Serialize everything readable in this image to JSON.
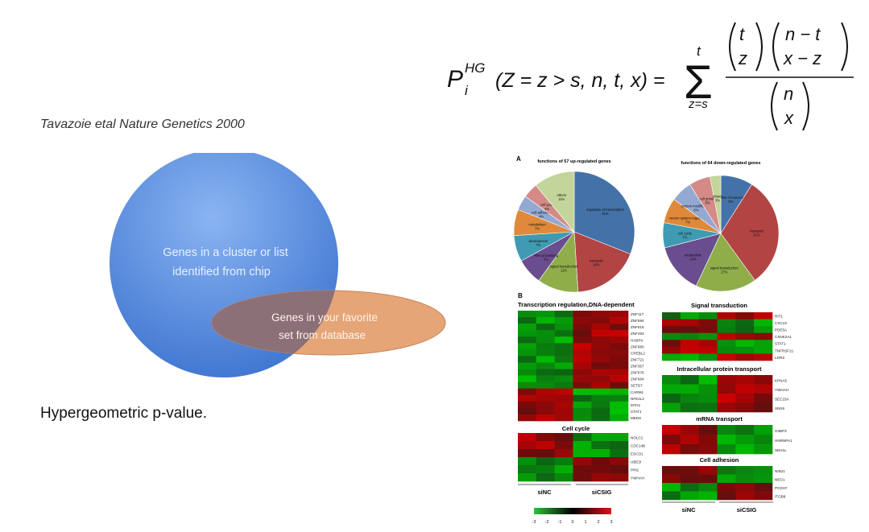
{
  "formula": {
    "lhs_P": "P",
    "lhs_sup": "HG",
    "lhs_sub": "i",
    "lhs_args": "(Z = z > s, n, t, x) =",
    "sum_top": "t",
    "sum_bottom": "z=s",
    "binom1_top": "t",
    "binom1_bottom": "z",
    "binom2_top": "n − t",
    "binom2_bottom": "x − z",
    "binom3_top": "n",
    "binom3_bottom": "x"
  },
  "citation": "Tavazoie etal Nature Genetics 2000",
  "venn": {
    "big_label_line1": "Genes in a cluster or list",
    "big_label_line2": "identified from chip",
    "small_label_line1": "Genes in your favorite",
    "small_label_line2": "set from database",
    "big_color": "#5b8fe0",
    "small_color": "#e2a272"
  },
  "footer_text": "Hypergeometric p-value.",
  "figure": {
    "panel_a_label": "A",
    "panel_b_label": "B",
    "left_pie_title": "functions of 57 up-regulated genes",
    "right_pie_title": "functions of 64 down-regulated genes",
    "section_titles": [
      "Transcription regulation,DNA-dependent",
      "Cell cycle",
      "Signal transduction",
      "Intracellular protein transport",
      "mRNA transport",
      "Cell adhesion"
    ],
    "group_labels": [
      "siNC",
      "siCSIG"
    ],
    "color_scale_ticks": [
      "-3",
      "-2",
      "-1",
      "0",
      "1",
      "2",
      "3"
    ],
    "transcription_genes": [
      "ZNF117",
      "ZNF594",
      "ZNF616",
      "ZNF493",
      "HABP4",
      "ZNF680",
      "CREBL2",
      "ZNF721",
      "ZNF367",
      "ZNF678",
      "ZNF664",
      "SETD7",
      "CARM1",
      "NFE2L2",
      "MTA2",
      "STAT1",
      "MED8"
    ],
    "cellcycle_genes": [
      "NOLC1",
      "CDC14B",
      "ESCO1",
      "UBE2I",
      "PIN1",
      "YWHAH"
    ],
    "signal_genes": [
      "RIT1",
      "CXCL8",
      "PDE5A",
      "CSNK2A1",
      "STAT1",
      "TNFRSF21",
      "LDRS"
    ],
    "protein_transport_genes": [
      "KPNA5",
      "YWHAH",
      "SEC23A",
      "SNX9"
    ],
    "mrna_genes": [
      "G3BP2",
      "HNRNPA1",
      "SEH1L"
    ],
    "adhesion_genes": [
      "NINJ1",
      "NEO1",
      "PCDH7",
      "ITGB8"
    ]
  },
  "chart_data": [
    {
      "type": "pie",
      "title": "functions of 57 up-regulated genes",
      "slices": [
        {
          "label": "regulation of transcription",
          "value": 31,
          "color": "#4472a8"
        },
        {
          "label": "transport",
          "value": 18,
          "color": "#b34444"
        },
        {
          "label": "signal transduction",
          "value": 11,
          "color": "#8fae4a"
        },
        {
          "label": "RNA processing",
          "value": 7,
          "color": "#6a4d8e"
        },
        {
          "label": "development",
          "value": 7,
          "color": "#3f9bb2"
        },
        {
          "label": "metabolism",
          "value": 7,
          "color": "#e0893a"
        },
        {
          "label": "cell adhesion",
          "value": 4,
          "color": "#93a9d2"
        },
        {
          "label": "cell cycle",
          "value": 4,
          "color": "#d48b88"
        },
        {
          "label": "others",
          "value": 11,
          "color": "#c3d59b"
        }
      ]
    },
    {
      "type": "pie",
      "title": "functions of 64 down-regulated genes",
      "slices": [
        {
          "label": "regulation of transcription",
          "value": 9,
          "color": "#4472a8"
        },
        {
          "label": "transport",
          "value": 31,
          "color": "#b34444"
        },
        {
          "label": "signal transduction",
          "value": 17,
          "color": "#8fae4a"
        },
        {
          "label": "metabolism",
          "value": 14,
          "color": "#6a4d8e"
        },
        {
          "label": "cell cycle",
          "value": 7,
          "color": "#3f9bb2"
        },
        {
          "label": "neuron system regulation",
          "value": 7,
          "color": "#e0893a"
        },
        {
          "label": "protein modification",
          "value": 6,
          "color": "#93a9d2"
        },
        {
          "label": "cell growth",
          "value": 6,
          "color": "#d48b88"
        },
        {
          "label": "others",
          "value": 3,
          "color": "#c3d59b"
        }
      ]
    }
  ]
}
